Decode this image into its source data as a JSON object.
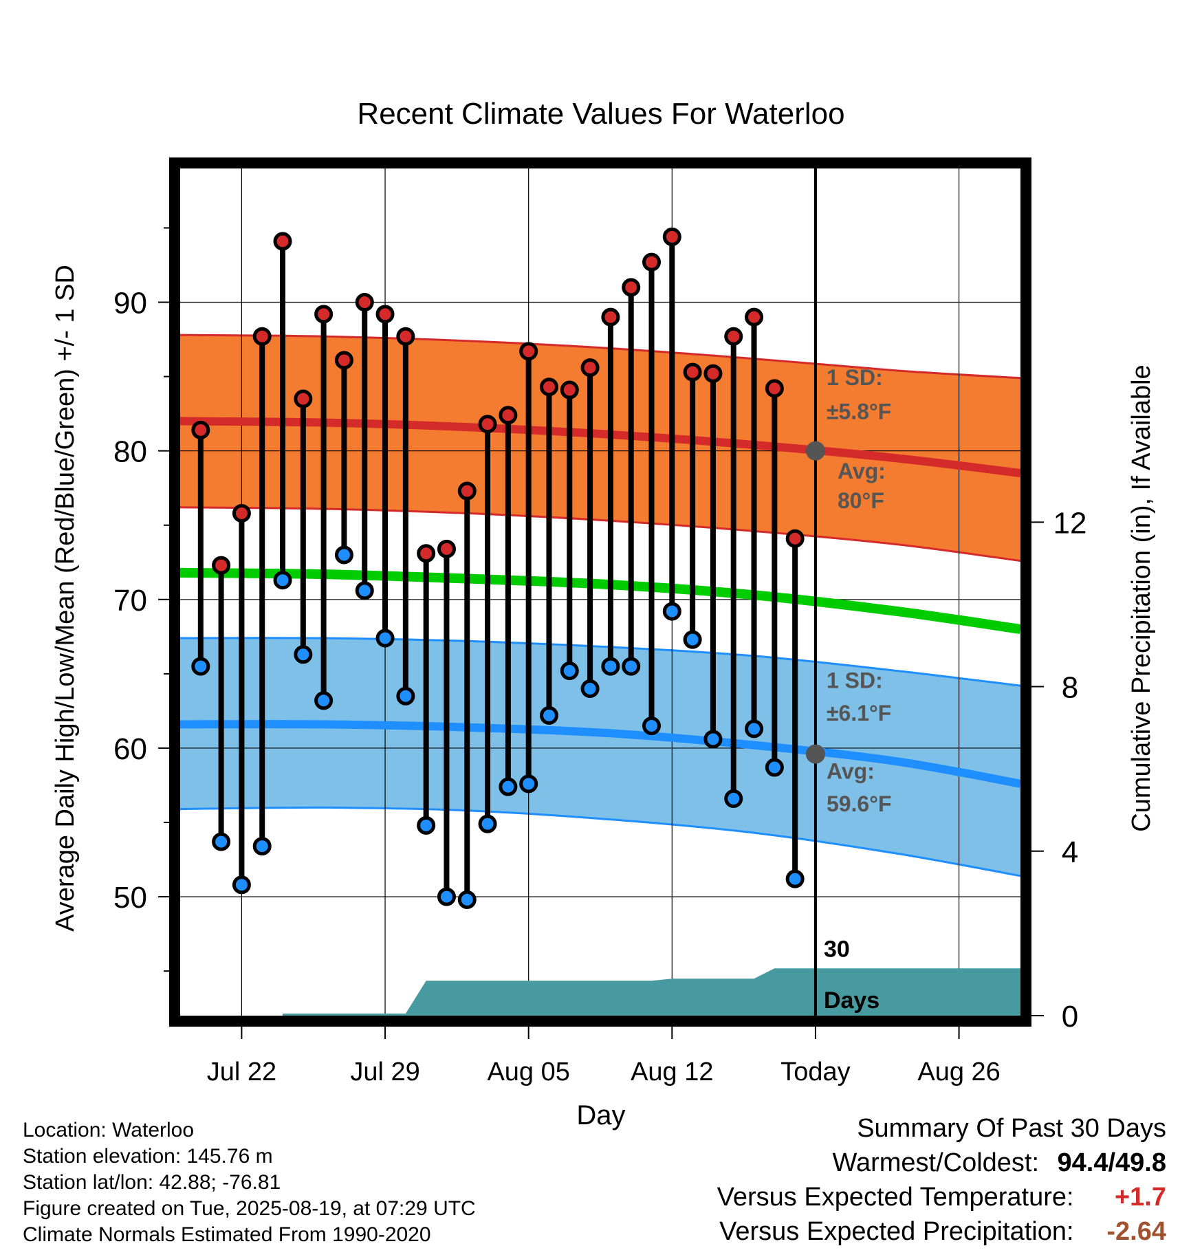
{
  "chart_data": {
    "type": "line",
    "title": "Recent Climate Values For Waterloo",
    "xlabel": "Day",
    "ylabel": "Average Daily High/Low/Mean (Red/Blue/Green) +/- 1 SD",
    "y2label": "Cumulative Precipitation (in), If Available",
    "ylim": [
      42,
      99
    ],
    "y_ticks": [
      "50",
      "60",
      "70",
      "80",
      "90"
    ],
    "y2lim": [
      0,
      20.6
    ],
    "y2_ticks": [
      "0",
      "4",
      "8",
      "12"
    ],
    "x_range": [
      "2025-07-19",
      "2025-08-29"
    ],
    "x_ticks": [
      {
        "date": "2025-07-22",
        "label": "Jul 22"
      },
      {
        "date": "2025-07-29",
        "label": "Jul 29"
      },
      {
        "date": "2025-08-05",
        "label": "Aug 05"
      },
      {
        "date": "2025-08-12",
        "label": "Aug 12"
      },
      {
        "date": "2025-08-19",
        "label": "Today"
      },
      {
        "date": "2025-08-26",
        "label": "Aug 26"
      }
    ],
    "grid": true,
    "today": "2025-08-19",
    "window_label": "30 Days",
    "colors": {
      "high": "#d42a2a",
      "high_band": "#f47c30",
      "low": "#1f8fff",
      "low_band": "#7ec0e8",
      "mean": "#00cc00",
      "precip": "#479aa0",
      "today_marker": "#555555",
      "annotation": "#555555"
    },
    "normals": {
      "dates": [
        "2025-07-19",
        "2025-07-26",
        "2025-08-02",
        "2025-08-09",
        "2025-08-16",
        "2025-08-23",
        "2025-08-29"
      ],
      "avg_high": [
        82.0,
        81.9,
        81.6,
        81.1,
        80.4,
        79.5,
        78.5
      ],
      "high_sd_upper": [
        87.8,
        87.7,
        87.4,
        86.9,
        86.2,
        85.4,
        84.9
      ],
      "high_sd_lower": [
        76.2,
        76.1,
        75.8,
        75.3,
        74.6,
        73.7,
        72.6
      ],
      "avg_mean": [
        71.8,
        71.7,
        71.4,
        71.0,
        70.3,
        69.2,
        68.0
      ],
      "avg_low": [
        61.6,
        61.6,
        61.4,
        61.0,
        60.2,
        59.1,
        57.6
      ],
      "low_sd_upper": [
        67.4,
        67.4,
        67.2,
        66.8,
        66.2,
        65.2,
        64.2
      ],
      "low_sd_lower": [
        55.9,
        56.0,
        55.8,
        55.2,
        54.3,
        52.9,
        51.4
      ]
    },
    "series": [
      {
        "name": "Daily High",
        "x": [
          "2025-07-20",
          "2025-07-21",
          "2025-07-22",
          "2025-07-23",
          "2025-07-24",
          "2025-07-25",
          "2025-07-26",
          "2025-07-27",
          "2025-07-28",
          "2025-07-29",
          "2025-07-30",
          "2025-07-31",
          "2025-08-01",
          "2025-08-02",
          "2025-08-03",
          "2025-08-04",
          "2025-08-05",
          "2025-08-06",
          "2025-08-07",
          "2025-08-08",
          "2025-08-09",
          "2025-08-10",
          "2025-08-11",
          "2025-08-12",
          "2025-08-13",
          "2025-08-14",
          "2025-08-15",
          "2025-08-16",
          "2025-08-17",
          "2025-08-18"
        ],
        "values": [
          81.4,
          72.3,
          75.8,
          87.7,
          94.1,
          83.5,
          89.2,
          86.1,
          90.0,
          89.2,
          87.7,
          73.1,
          73.4,
          77.3,
          81.8,
          82.4,
          86.7,
          84.3,
          84.1,
          85.6,
          89.0,
          91.0,
          92.7,
          94.4,
          85.3,
          85.2,
          87.7,
          89.0,
          84.2,
          74.1
        ]
      },
      {
        "name": "Daily Low",
        "x": [
          "2025-07-20",
          "2025-07-21",
          "2025-07-22",
          "2025-07-23",
          "2025-07-24",
          "2025-07-25",
          "2025-07-26",
          "2025-07-27",
          "2025-07-28",
          "2025-07-29",
          "2025-07-30",
          "2025-07-31",
          "2025-08-01",
          "2025-08-02",
          "2025-08-03",
          "2025-08-04",
          "2025-08-05",
          "2025-08-06",
          "2025-08-07",
          "2025-08-08",
          "2025-08-09",
          "2025-08-10",
          "2025-08-11",
          "2025-08-12",
          "2025-08-13",
          "2025-08-14",
          "2025-08-15",
          "2025-08-16",
          "2025-08-17",
          "2025-08-18"
        ],
        "values": [
          65.5,
          53.7,
          50.8,
          53.4,
          71.3,
          66.3,
          63.2,
          73.0,
          70.6,
          67.4,
          63.5,
          54.8,
          50.0,
          49.8,
          54.9,
          57.4,
          57.6,
          62.2,
          65.2,
          64.0,
          65.5,
          65.5,
          61.5,
          69.2,
          67.3,
          60.6,
          56.6,
          61.3,
          58.7,
          51.2
        ]
      }
    ],
    "precip": {
      "x": [
        "2025-07-19",
        "2025-07-24",
        "2025-07-24",
        "2025-07-30",
        "2025-07-31",
        "2025-08-11",
        "2025-08-12",
        "2025-08-16",
        "2025-08-17",
        "2025-08-29"
      ],
      "values": [
        0.0,
        0.0,
        0.05,
        0.05,
        0.85,
        0.85,
        0.9,
        0.9,
        1.15,
        1.15
      ]
    },
    "annotations": {
      "high_sd_label": "1 SD:",
      "high_sd_value": "±5.8°F",
      "high_avg_label": "Avg:",
      "high_avg_value": "80°F",
      "high_avg_today": 80.0,
      "low_sd_label": "1 SD:",
      "low_sd_value": "±6.1°F",
      "low_avg_label": "Avg:",
      "low_avg_value": "59.6°F",
      "low_avg_today": 59.6
    }
  },
  "station_info": {
    "location": "Location: Waterloo",
    "elevation": "Station elevation: 145.76 m",
    "latlon": "Station lat/lon: 42.88; -76.81",
    "created": "Figure created on Tue, 2025-08-19, at 07:29 UTC",
    "normals": "Climate Normals Estimated From 1990-2020"
  },
  "summary": {
    "heading": "Summary Of Past 30 Days",
    "warmest_coldest_label": "Warmest/Coldest:",
    "warmest_coldest_value": "94.4/49.8",
    "temp_label": "Versus Expected Temperature:",
    "temp_value": "+1.7",
    "temp_color": "#d42a2a",
    "precip_label": "Versus Expected Precipitation:",
    "precip_value": "-2.64",
    "precip_color": "#a0522d"
  }
}
